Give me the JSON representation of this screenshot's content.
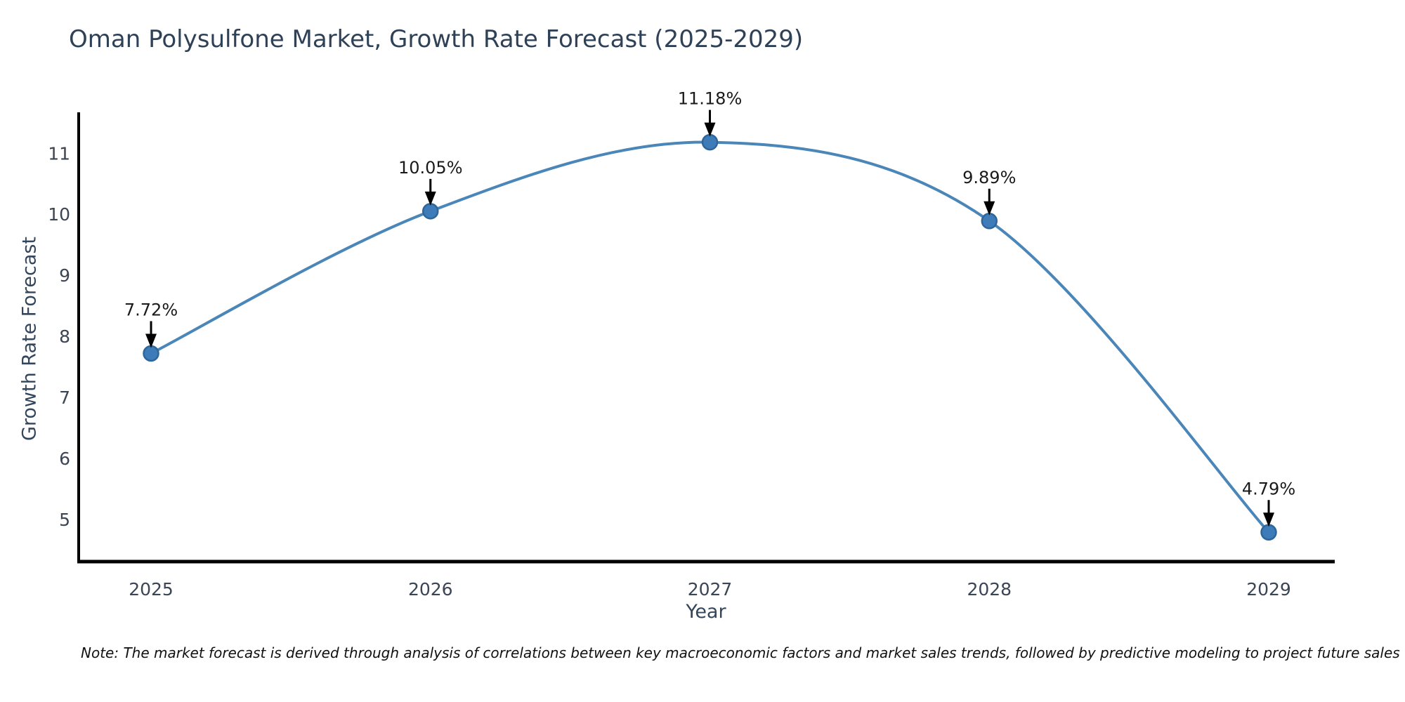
{
  "title": "Oman Polysulfone Market, Growth Rate Forecast (2025-2029)",
  "note": "Note: The market forecast is derived through analysis of correlations between key macroeconomic factors and market sales trends, followed by predictive modeling to project future sales",
  "chart_data": {
    "type": "line",
    "title": "Oman Polysulfone Market, Growth Rate Forecast (2025-2029)",
    "xlabel": "Year",
    "ylabel": "Growth Rate Forecast",
    "x": [
      2025,
      2026,
      2027,
      2028,
      2029
    ],
    "series": [
      {
        "name": "Growth Rate Forecast",
        "values": [
          7.72,
          10.05,
          11.18,
          9.89,
          4.79
        ]
      }
    ],
    "point_labels": [
      "7.72%",
      "10.05%",
      "11.18%",
      "9.89%",
      "4.79%"
    ],
    "x_tick_labels": [
      "2025",
      "2026",
      "2027",
      "2028",
      "2029"
    ],
    "y_ticks": [
      5,
      6,
      7,
      8,
      9,
      10,
      11
    ],
    "ylim": [
      4.31,
      11.67
    ],
    "grid": false,
    "legend_position": "none",
    "line_style": "spline",
    "annotation_arrows": true
  },
  "colors": {
    "background": "#ffffff",
    "line": "#4a86b8",
    "marker_fill": "#3d7cb8",
    "marker_border": "#2f6699",
    "axis_line": "#000000",
    "tick_text": "#3b4554",
    "annotation_text": "#1a1a1a",
    "arrow": "#000000",
    "title_text": "#2e4157",
    "axis_title_text": "#33465c",
    "note_text": "#111111"
  }
}
